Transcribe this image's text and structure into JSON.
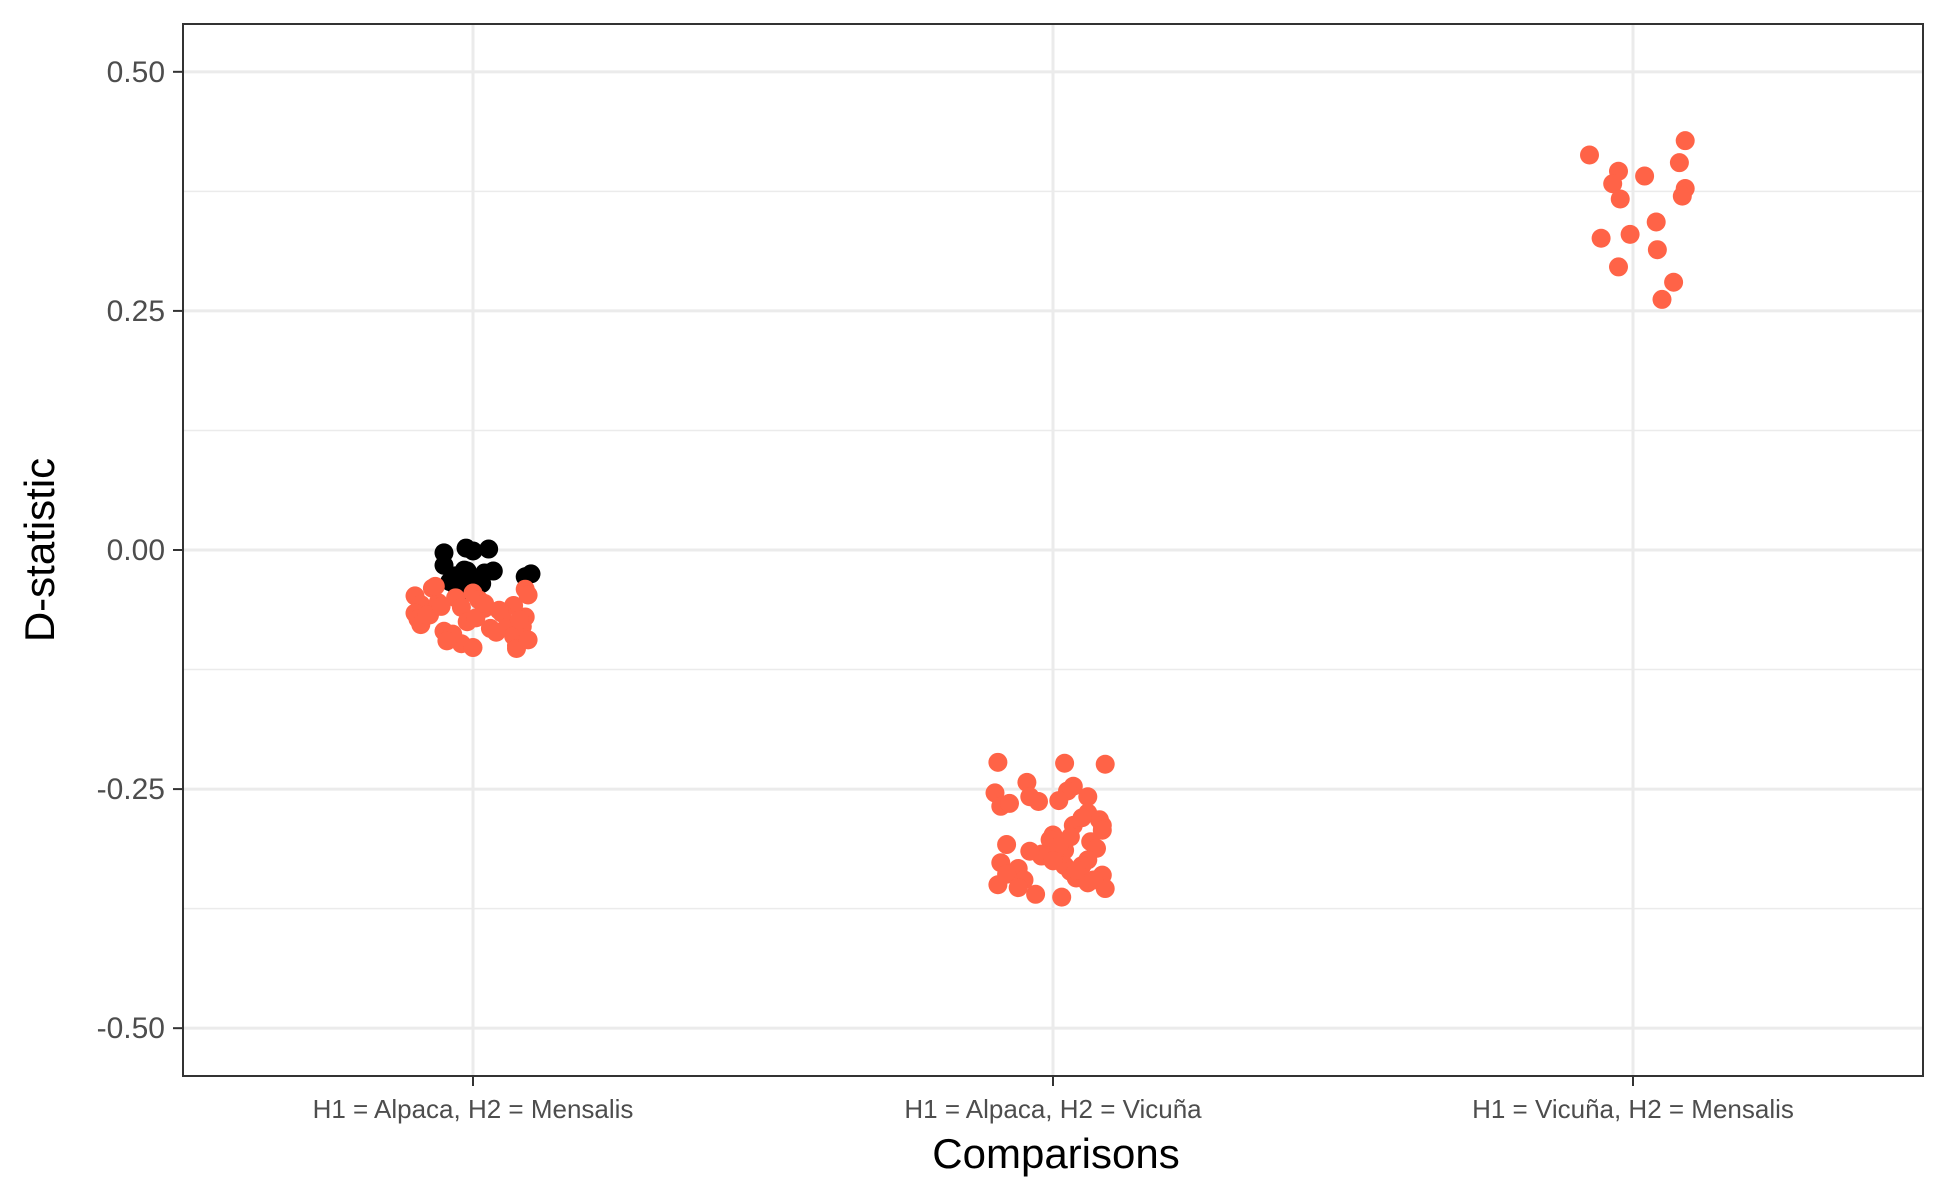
{
  "chart_data": {
    "type": "scatter",
    "title": "",
    "xlabel": "Comparisons",
    "ylabel": "D-statistic",
    "categories": [
      "H1 = Alpaca, H2 = Mensalis",
      "H1 = Alpaca, H2 = Vicuña",
      "H1 = Vicuña, H2 = Mensalis"
    ],
    "ylim": [
      -0.55,
      0.55
    ],
    "yticks": [
      -0.5,
      -0.25,
      0.0,
      0.25,
      0.5
    ],
    "ytick_labels": [
      "-0.50",
      "-0.25",
      "0.00",
      "0.25",
      "0.50"
    ],
    "grid": true,
    "legend": "none",
    "series": [
      {
        "color": "#000000",
        "points": [
          [
            0,
            0.002
          ],
          [
            0,
            -0.001
          ],
          [
            0,
            0.001
          ],
          [
            0,
            -0.003
          ],
          [
            0,
            -0.016
          ],
          [
            0,
            -0.021
          ],
          [
            0,
            -0.024
          ],
          [
            0,
            -0.028
          ],
          [
            0,
            -0.022
          ],
          [
            0,
            -0.025
          ],
          [
            0,
            -0.033
          ],
          [
            0,
            -0.037
          ],
          [
            0,
            -0.039
          ],
          [
            0,
            -0.042
          ],
          [
            0,
            -0.03
          ],
          [
            0,
            -0.035
          ],
          [
            0,
            -0.027
          ],
          [
            0,
            -0.045
          ],
          [
            0,
            -0.022
          ],
          [
            0,
            -0.031
          ]
        ],
        "x_offsets": [
          -0.012,
          0.0,
          0.027,
          -0.05,
          -0.05,
          -0.015,
          0.02,
          0.09,
          -0.01,
          0.1,
          -0.04,
          -0.03,
          -0.005,
          -0.02,
          0.01,
          0.015,
          -0.03,
          -0.025,
          0.035,
          -0.02
        ]
      },
      {
        "color": "#ff6347",
        "points": [
          [
            0,
            -0.048
          ],
          [
            0,
            -0.057
          ],
          [
            0,
            -0.066
          ],
          [
            0,
            -0.072
          ],
          [
            0,
            -0.078
          ],
          [
            0,
            -0.04
          ],
          [
            0,
            -0.055
          ],
          [
            0,
            -0.068
          ],
          [
            0,
            -0.085
          ],
          [
            0,
            -0.092
          ],
          [
            0,
            -0.098
          ],
          [
            0,
            -0.102
          ],
          [
            0,
            -0.05
          ],
          [
            0,
            -0.06
          ],
          [
            0,
            -0.075
          ],
          [
            0,
            -0.088
          ],
          [
            0,
            -0.045
          ],
          [
            0,
            -0.052
          ],
          [
            0,
            -0.061
          ],
          [
            0,
            -0.071
          ],
          [
            0,
            -0.082
          ],
          [
            0,
            -0.1
          ],
          [
            0,
            -0.041
          ],
          [
            0,
            -0.058
          ],
          [
            0,
            -0.066
          ],
          [
            0,
            -0.078
          ],
          [
            0,
            -0.09
          ],
          [
            0,
            -0.103
          ],
          [
            0,
            -0.063
          ],
          [
            0,
            -0.07
          ],
          [
            0,
            -0.047
          ],
          [
            0,
            -0.08
          ],
          [
            0,
            -0.094
          ],
          [
            0,
            -0.056
          ],
          [
            0,
            -0.086
          ],
          [
            0,
            -0.073
          ],
          [
            0,
            -0.038
          ],
          [
            0,
            -0.068
          ],
          [
            0,
            -0.095
          ],
          [
            0,
            -0.059
          ]
        ],
        "x_offsets": [
          -0.1,
          -0.09,
          -0.1,
          -0.095,
          -0.09,
          -0.07,
          -0.06,
          -0.075,
          -0.05,
          -0.04,
          -0.02,
          0.0,
          -0.03,
          -0.02,
          -0.01,
          -0.035,
          0.0,
          0.01,
          0.02,
          0.005,
          0.03,
          0.075,
          0.09,
          0.07,
          0.05,
          0.06,
          0.07,
          0.075,
          0.045,
          0.09,
          0.095,
          0.085,
          0.095,
          0.02,
          0.04,
          0.08,
          -0.065,
          -0.08,
          -0.045,
          -0.055
        ]
      },
      {
        "color": "#ff6347",
        "points": [
          [
            1,
            -0.222
          ],
          [
            1,
            -0.223
          ],
          [
            1,
            -0.224
          ],
          [
            1,
            -0.243
          ],
          [
            1,
            -0.247
          ],
          [
            1,
            -0.252
          ],
          [
            1,
            -0.254
          ],
          [
            1,
            -0.258
          ],
          [
            1,
            -0.262
          ],
          [
            1,
            -0.263
          ],
          [
            1,
            -0.258
          ],
          [
            1,
            -0.268
          ],
          [
            1,
            -0.275
          ],
          [
            1,
            -0.282
          ],
          [
            1,
            -0.288
          ],
          [
            1,
            -0.293
          ],
          [
            1,
            -0.288
          ],
          [
            1,
            -0.298
          ],
          [
            1,
            -0.303
          ],
          [
            1,
            -0.305
          ],
          [
            1,
            -0.308
          ],
          [
            1,
            -0.312
          ],
          [
            1,
            -0.314
          ],
          [
            1,
            -0.318
          ],
          [
            1,
            -0.32
          ],
          [
            1,
            -0.324
          ],
          [
            1,
            -0.327
          ],
          [
            1,
            -0.33
          ],
          [
            1,
            -0.333
          ],
          [
            1,
            -0.336
          ],
          [
            1,
            -0.339
          ],
          [
            1,
            -0.34
          ],
          [
            1,
            -0.343
          ],
          [
            1,
            -0.345
          ],
          [
            1,
            -0.348
          ],
          [
            1,
            -0.35
          ],
          [
            1,
            -0.353
          ],
          [
            1,
            -0.354
          ],
          [
            1,
            -0.36
          ],
          [
            1,
            -0.363
          ],
          [
            1,
            -0.3
          ],
          [
            1,
            -0.31
          ],
          [
            1,
            -0.32
          ],
          [
            1,
            -0.33
          ],
          [
            1,
            -0.315
          ],
          [
            1,
            -0.325
          ],
          [
            1,
            -0.335
          ],
          [
            1,
            -0.345
          ],
          [
            1,
            -0.28
          ],
          [
            1,
            -0.265
          ]
        ],
        "x_offsets": [
          -0.095,
          0.02,
          0.09,
          -0.045,
          0.035,
          0.025,
          -0.1,
          -0.04,
          0.01,
          -0.025,
          0.06,
          -0.09,
          0.06,
          0.08,
          0.085,
          0.085,
          0.035,
          0.0,
          -0.005,
          0.065,
          -0.08,
          0.075,
          0.02,
          -0.02,
          -0.01,
          0.06,
          -0.09,
          0.02,
          -0.06,
          0.03,
          -0.08,
          0.085,
          0.04,
          -0.05,
          0.06,
          -0.095,
          -0.06,
          0.09,
          -0.03,
          0.015,
          0.03,
          0.01,
          -0.02,
          0.05,
          -0.04,
          0.0,
          0.04,
          0.07,
          0.05,
          -0.075
        ]
      },
      {
        "color": "#ff6347",
        "points": [
          [
            2,
            0.428
          ],
          [
            2,
            0.413
          ],
          [
            2,
            0.405
          ],
          [
            2,
            0.396
          ],
          [
            2,
            0.391
          ],
          [
            2,
            0.383
          ],
          [
            2,
            0.378
          ],
          [
            2,
            0.37
          ],
          [
            2,
            0.367
          ],
          [
            2,
            0.343
          ],
          [
            2,
            0.33
          ],
          [
            2,
            0.326
          ],
          [
            2,
            0.314
          ],
          [
            2,
            0.296
          ],
          [
            2,
            0.28
          ],
          [
            2,
            0.262
          ]
        ],
        "x_offsets": [
          0.09,
          -0.075,
          0.08,
          -0.025,
          0.02,
          -0.035,
          0.09,
          0.085,
          -0.022,
          0.04,
          -0.005,
          -0.055,
          0.042,
          -0.025,
          0.07,
          0.05
        ]
      }
    ]
  }
}
